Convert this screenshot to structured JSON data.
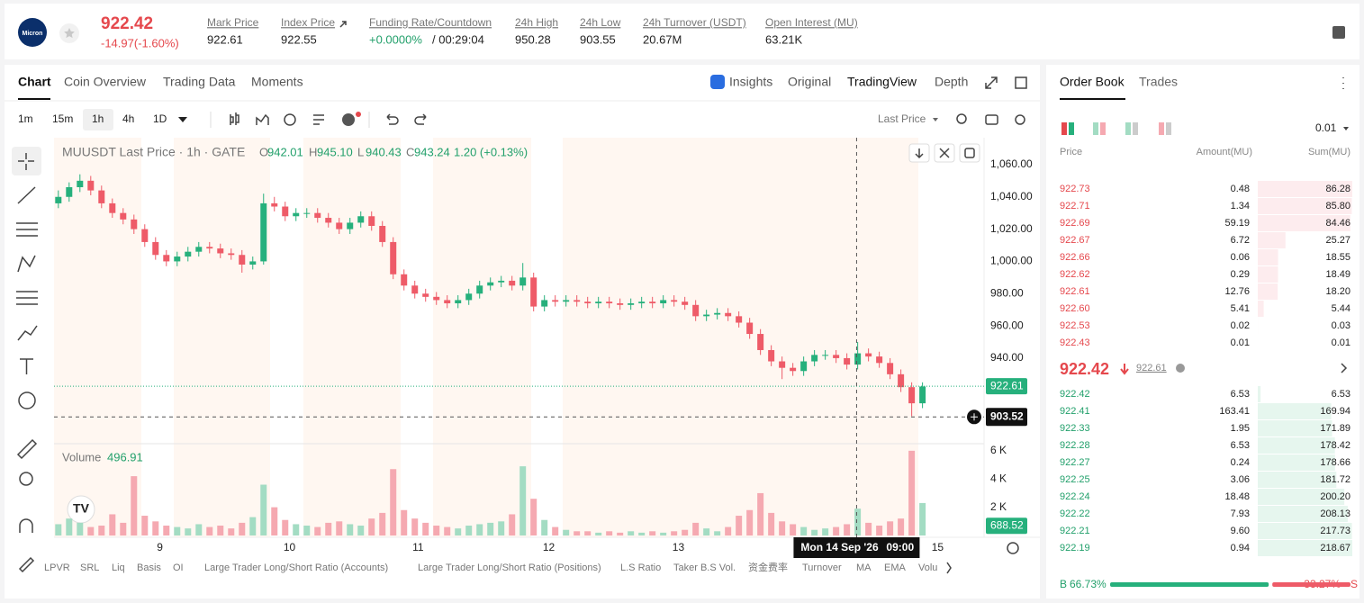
{
  "header": {
    "logo": "Micron",
    "price": "922.42",
    "change": "-14.97(-1.60%)",
    "stats": [
      {
        "label": "Mark Price",
        "value": "922.61"
      },
      {
        "label": "Index Price",
        "value": "922.55"
      },
      {
        "label": "Funding Rate/Countdown",
        "value": "+0.0000%",
        "extra": "/ 00:29:04"
      },
      {
        "label": "24h High",
        "value": "950.28"
      },
      {
        "label": "24h Low",
        "value": "903.55"
      },
      {
        "label": "24h Turnover (USDT)",
        "value": "20.67M"
      },
      {
        "label": "Open Interest (MU)",
        "value": "63.21K"
      }
    ]
  },
  "tabs": [
    "Chart",
    "Coin Overview",
    "Trading Data",
    "Moments"
  ],
  "view_tabs": [
    "Insights",
    "Original",
    "TradingView",
    "Depth"
  ],
  "intervals": [
    "1m",
    "15m",
    "1h",
    "4h",
    "1D"
  ],
  "price_type": "Last Price",
  "chart_data": {
    "type": "candlestick",
    "title": "MUUSDT Last Price · 1h · GATE",
    "legend": [
      {
        "key": "O",
        "value": "942.01"
      },
      {
        "key": "H",
        "value": "945.10"
      },
      {
        "key": "L",
        "value": "940.43"
      },
      {
        "key": "C",
        "value": "943.24"
      }
    ],
    "legend_change": "1.20 (+0.13%)",
    "volume_label": "Volume",
    "volume_value": "496.91",
    "up_color": "#26b07c",
    "down_color": "#ee5b68",
    "volume_up_color": "#a3dcc3",
    "volume_down_color": "#f5a9b1",
    "open": [
      1036,
      1040,
      1046,
      1050,
      1044,
      1036,
      1030,
      1026,
      1020,
      1012,
      1004,
      1000,
      1003,
      1006,
      1009,
      1008,
      1005,
      1004,
      998,
      1000,
      1036,
      1034,
      1028,
      1030,
      1030,
      1027,
      1024,
      1020,
      1024,
      1028,
      1022,
      1012,
      992,
      985,
      980,
      978,
      976,
      974,
      976,
      980,
      985,
      987,
      988,
      985,
      990,
      972,
      976,
      975,
      976,
      975,
      974,
      975,
      974,
      973,
      974,
      975,
      974,
      976,
      975,
      973,
      966,
      967,
      968,
      966,
      962,
      955,
      945,
      938,
      934,
      932,
      938,
      942,
      942,
      940,
      936,
      943,
      941,
      937,
      930,
      922,
      912
    ],
    "high": [
      1044,
      1049,
      1054,
      1053,
      1047,
      1039,
      1033,
      1029,
      1023,
      1015,
      1007,
      1006,
      1009,
      1012,
      1012,
      1011,
      1008,
      1007,
      1003,
      1042,
      1040,
      1037,
      1033,
      1033,
      1033,
      1030,
      1027,
      1027,
      1031,
      1031,
      1025,
      1015,
      995,
      988,
      983,
      981,
      979,
      979,
      983,
      988,
      990,
      991,
      991,
      999,
      993,
      979,
      979,
      979,
      979,
      978,
      978,
      978,
      977,
      977,
      978,
      978,
      979,
      979,
      978,
      976,
      970,
      971,
      971,
      969,
      965,
      958,
      948,
      941,
      937,
      941,
      945,
      945,
      945,
      943,
      950,
      946,
      944,
      940,
      933,
      925,
      925
    ],
    "low": [
      1033,
      1037,
      1043,
      1041,
      1033,
      1027,
      1023,
      1017,
      1009,
      1001,
      997,
      997,
      1000,
      1003,
      1005,
      1002,
      1001,
      993,
      995,
      998,
      1031,
      1025,
      1025,
      1027,
      1024,
      1021,
      1017,
      1017,
      1021,
      1019,
      1009,
      989,
      982,
      977,
      975,
      973,
      971,
      971,
      973,
      977,
      982,
      984,
      982,
      982,
      969,
      969,
      972,
      972,
      972,
      971,
      971,
      971,
      970,
      970,
      971,
      971,
      971,
      972,
      970,
      963,
      963,
      964,
      963,
      959,
      952,
      942,
      935,
      927,
      929,
      929,
      935,
      939,
      937,
      933,
      933,
      938,
      934,
      927,
      919,
      904,
      909
    ],
    "close": [
      1040,
      1046,
      1050,
      1044,
      1036,
      1030,
      1026,
      1020,
      1012,
      1004,
      1000,
      1003,
      1006,
      1009,
      1008,
      1005,
      1004,
      998,
      1000,
      1036,
      1034,
      1028,
      1030,
      1030,
      1027,
      1024,
      1020,
      1024,
      1028,
      1022,
      1012,
      992,
      985,
      980,
      978,
      976,
      974,
      976,
      980,
      985,
      987,
      988,
      985,
      990,
      972,
      976,
      975,
      976,
      975,
      974,
      975,
      974,
      973,
      974,
      975,
      974,
      976,
      975,
      973,
      966,
      967,
      968,
      966,
      962,
      955,
      945,
      938,
      934,
      932,
      938,
      942,
      942,
      940,
      936,
      943,
      941,
      937,
      930,
      922,
      912,
      922.42
    ],
    "volume": [
      800,
      1200,
      900,
      600,
      700,
      1500,
      900,
      4200,
      1400,
      1000,
      700,
      600,
      500,
      800,
      600,
      700,
      500,
      900,
      1300,
      3600,
      2000,
      1100,
      800,
      700,
      600,
      900,
      1000,
      800,
      700,
      1200,
      1600,
      4700,
      1800,
      1200,
      900,
      700,
      600,
      500,
      700,
      800,
      900,
      1000,
      1500,
      4900,
      2600,
      1100,
      600,
      400,
      300,
      300,
      200,
      300,
      200,
      300,
      200,
      300,
      200,
      300,
      400,
      900,
      500,
      300,
      600,
      1400,
      1800,
      3000,
      1600,
      1000,
      800,
      600,
      400,
      500,
      600,
      800,
      1900,
      900,
      700,
      1000,
      1200,
      6000,
      2300
    ],
    "ylim": [
      887.5,
      1076.7
    ],
    "yticks": [
      {
        "value": 1060,
        "label": "1,060.00"
      },
      {
        "value": 1040,
        "label": "1,040.00"
      },
      {
        "value": 1020,
        "label": "1,020.00"
      },
      {
        "value": 1000,
        "label": "1,000.00"
      },
      {
        "value": 980,
        "label": "980.00"
      },
      {
        "value": 960,
        "label": "960.00"
      },
      {
        "value": 940,
        "label": "940.00"
      }
    ],
    "volume_ylim": [
      0,
      6500
    ],
    "volume_yticks": [
      {
        "value": 6000,
        "label": "6 K"
      },
      {
        "value": 4000,
        "label": "4 K"
      },
      {
        "value": 2000,
        "label": "2 K"
      }
    ],
    "xlim": [
      -0.4,
      85.7
    ],
    "xticks": [
      {
        "value": 9.4,
        "label": "9"
      },
      {
        "value": 21.4,
        "label": "10"
      },
      {
        "value": 33.3,
        "label": "11"
      },
      {
        "value": 45.4,
        "label": "12"
      },
      {
        "value": 57.4,
        "label": "13"
      },
      {
        "value": 81.4,
        "label": "15"
      }
    ],
    "last_price": 922.61,
    "volume_last": 688.52,
    "crosshair": {
      "x": 73.9,
      "y": 903.52,
      "x_label": "Mon 14 Sep '26",
      "time_label": "09:00"
    }
  },
  "indicators": [
    "LPVR",
    "SRL",
    "Liq",
    "Basis",
    "OI",
    "Large Trader Long/Short Ratio (Accounts)",
    "Large Trader Long/Short Ratio (Positions)",
    "L.S Ratio",
    "Taker B.S Vol.",
    "资金费率",
    "Turnover",
    "MA",
    "EMA",
    "Volu"
  ],
  "order_book": {
    "tabs": [
      "Order Book",
      "Trades"
    ],
    "precision": "0.01",
    "columns": [
      "Price",
      "Amount(MU)",
      "Sum(MU)"
    ],
    "asks": [
      [
        "922.73",
        "0.48",
        "86.28"
      ],
      [
        "922.71",
        "1.34",
        "85.80"
      ],
      [
        "922.69",
        "59.19",
        "84.46"
      ],
      [
        "922.67",
        "6.72",
        "25.27"
      ],
      [
        "922.66",
        "0.06",
        "18.55"
      ],
      [
        "922.62",
        "0.29",
        "18.49"
      ],
      [
        "922.61",
        "12.76",
        "18.20"
      ],
      [
        "922.60",
        "5.41",
        "5.44"
      ],
      [
        "922.53",
        "0.02",
        "0.03"
      ],
      [
        "922.43",
        "0.01",
        "0.01"
      ]
    ],
    "mid_price": "922.42",
    "mark_price": "922.61",
    "bids": [
      [
        "922.42",
        "6.53",
        "6.53"
      ],
      [
        "922.41",
        "163.41",
        "169.94"
      ],
      [
        "922.33",
        "1.95",
        "171.89"
      ],
      [
        "922.28",
        "6.53",
        "178.42"
      ],
      [
        "922.27",
        "0.24",
        "178.66"
      ],
      [
        "922.25",
        "3.06",
        "181.72"
      ],
      [
        "922.24",
        "18.48",
        "200.20"
      ],
      [
        "922.22",
        "7.93",
        "208.13"
      ],
      [
        "922.21",
        "9.60",
        "217.73"
      ],
      [
        "922.19",
        "0.94",
        "218.67"
      ]
    ],
    "buy_label": "B",
    "buy_ratio": {
      "value": 66.73,
      "label": "66.73%"
    },
    "sell_label": "S",
    "sell_ratio": {
      "value": 33.27,
      "label": "33.27%"
    }
  }
}
